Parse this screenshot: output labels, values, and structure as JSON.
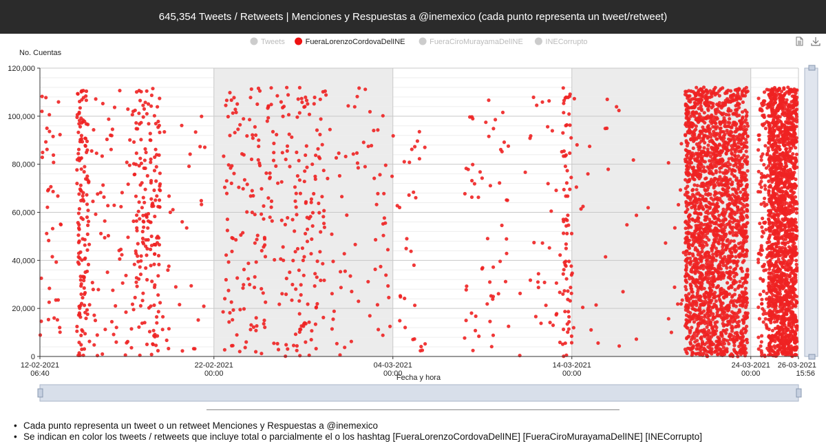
{
  "header": {
    "title": "645,354 Tweets / Retweets | Menciones y Respuestas a @inemexico (cada punto representa un tweet/retweet)"
  },
  "toolbox": {
    "items": [
      {
        "icon": "data-view-icon"
      },
      {
        "icon": "download-icon"
      }
    ]
  },
  "notes": [
    "Cada punto representa un tweet o un retweet Menciones y Respuestas a @inemexico",
    "Se indican en color los tweets / retweets que incluye total o parcialmente el o los hashtag [FueraLorenzoCordovaDelINE] [FueraCiroMurayamaDelINE] [INECorrupto]"
  ],
  "chart_data": {
    "type": "scatter",
    "title": "",
    "xlabel": "Fecha y hora",
    "ylabel": "No. Cuentas",
    "xlim": [
      "2021-02-12 06:40",
      "2021-03-26 15:56"
    ],
    "ylim": [
      0,
      120000
    ],
    "y_ticks": [
      "0",
      "20,000",
      "40,000",
      "60,000",
      "80,000",
      "100,000",
      "120,000"
    ],
    "x_ticks": [
      {
        "date": "2021-02-12 06:40",
        "line1": "12-02-2021",
        "line2": "06:40"
      },
      {
        "date": "2021-02-22 00:00",
        "line1": "22-02-2021",
        "line2": "00:00"
      },
      {
        "date": "2021-03-04 00:00",
        "line1": "04-03-2021",
        "line2": "00:00"
      },
      {
        "date": "2021-03-14 00:00",
        "line1": "14-03-2021",
        "line2": "00:00"
      },
      {
        "date": "2021-03-24 00:00",
        "line1": "24-03-2021",
        "line2": "00:00"
      },
      {
        "date": "2021-03-26 15:56",
        "line1": "26-03-2021",
        "line2": "15:56"
      }
    ],
    "shaded_bands": [
      [
        "2021-02-22 00:00",
        "2021-03-04 00:00"
      ],
      [
        "2021-03-14 00:00",
        "2021-03-24 00:00"
      ]
    ],
    "grid": true,
    "legend_position": "top-center",
    "legend": [
      {
        "name": "Tweets",
        "active": false,
        "color": "#cccccc"
      },
      {
        "name": "FueraLorenzoCordovaDelINE",
        "active": true,
        "color": "#ee1111"
      },
      {
        "name": "FueraCiroMurayamaDelINE",
        "active": false,
        "color": "#cccccc"
      },
      {
        "name": "INECorrupto",
        "active": false,
        "color": "#cccccc"
      }
    ],
    "series": [
      {
        "name": "FueraLorenzoCordovaDelINE",
        "color": "#ee2222",
        "clusters": [
          {
            "start": "2021-02-12 07:00",
            "end": "2021-02-13 12:00",
            "count": 40,
            "ymax": 110000
          },
          {
            "start": "2021-02-14 08:00",
            "end": "2021-02-15 00:00",
            "count": 140,
            "ymax": 112000
          },
          {
            "start": "2021-02-15 00:00",
            "end": "2021-02-17 12:00",
            "count": 70,
            "ymax": 112000
          },
          {
            "start": "2021-02-17 12:00",
            "end": "2021-02-19 00:00",
            "count": 180,
            "ymax": 112000
          },
          {
            "start": "2021-02-19 00:00",
            "end": "2021-02-21 12:00",
            "count": 30,
            "ymax": 100000
          },
          {
            "start": "2021-02-22 12:00",
            "end": "2021-02-24 06:00",
            "count": 80,
            "ymax": 112000
          },
          {
            "start": "2021-02-24 06:00",
            "end": "2021-02-26 00:00",
            "count": 80,
            "ymax": 112000
          },
          {
            "start": "2021-02-26 00:00",
            "end": "2021-02-28 00:00",
            "count": 120,
            "ymax": 112000
          },
          {
            "start": "2021-02-28 00:00",
            "end": "2021-03-04 00:00",
            "count": 80,
            "ymax": 112000
          },
          {
            "start": "2021-03-04 00:00",
            "end": "2021-03-06 00:00",
            "count": 30,
            "ymax": 97000
          },
          {
            "start": "2021-03-08 00:00",
            "end": "2021-03-10 12:00",
            "count": 55,
            "ymax": 108000
          },
          {
            "start": "2021-03-11 00:00",
            "end": "2021-03-13 12:00",
            "count": 35,
            "ymax": 108000
          },
          {
            "start": "2021-03-13 12:00",
            "end": "2021-03-14 00:00",
            "count": 70,
            "ymax": 112000
          },
          {
            "start": "2021-03-14 00:00",
            "end": "2021-03-19 12:00",
            "count": 30,
            "ymax": 112000
          },
          {
            "start": "2021-03-19 12:00",
            "end": "2021-03-20 06:00",
            "count": 10,
            "ymax": 90000
          },
          {
            "start": "2021-03-20 08:00",
            "end": "2021-03-23 20:00",
            "count": 2300,
            "ymax": 112000
          },
          {
            "start": "2021-03-24 10:00",
            "end": "2021-03-25 00:00",
            "count": 130,
            "ymax": 112000
          },
          {
            "start": "2021-03-25 00:00",
            "end": "2021-03-26 14:00",
            "count": 1700,
            "ymax": 112000
          }
        ]
      }
    ]
  }
}
